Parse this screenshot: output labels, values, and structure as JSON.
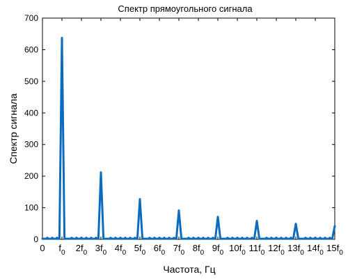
{
  "chart_data": {
    "type": "line",
    "title": "Спектр прямоугольного сигнала",
    "xlabel": "Частота, Гц",
    "ylabel": "Спектр сигнала",
    "ylim": [
      0,
      700
    ],
    "xlim": [
      0,
      15
    ],
    "y_ticks": [
      "0",
      "100",
      "200",
      "300",
      "400",
      "500",
      "600",
      "700"
    ],
    "x_ticks": [
      {
        "value": 0,
        "base": "0",
        "sub": ""
      },
      {
        "value": 1,
        "base": "f",
        "sub": "0"
      },
      {
        "value": 2,
        "base": "2f",
        "sub": "0"
      },
      {
        "value": 3,
        "base": "3f",
        "sub": "0"
      },
      {
        "value": 4,
        "base": "4f",
        "sub": "0"
      },
      {
        "value": 5,
        "base": "5f",
        "sub": "0"
      },
      {
        "value": 6,
        "base": "6f",
        "sub": "0"
      },
      {
        "value": 7,
        "base": "7f",
        "sub": "0"
      },
      {
        "value": 8,
        "base": "8f",
        "sub": "0"
      },
      {
        "value": 9,
        "base": "9f",
        "sub": "0"
      },
      {
        "value": 10,
        "base": "10f",
        "sub": "0"
      },
      {
        "value": 11,
        "base": "11f",
        "sub": "0"
      },
      {
        "value": 12,
        "base": "12f",
        "sub": "0"
      },
      {
        "value": 13,
        "base": "13f",
        "sub": "0"
      },
      {
        "value": 14,
        "base": "14f",
        "sub": "0"
      },
      {
        "value": 15,
        "base": "15f",
        "sub": "0"
      }
    ],
    "harmonics": [
      {
        "x": 1,
        "y": 637
      },
      {
        "x": 3,
        "y": 212
      },
      {
        "x": 5,
        "y": 127
      },
      {
        "x": 7,
        "y": 91
      },
      {
        "x": 9,
        "y": 71
      },
      {
        "x": 11,
        "y": 58
      },
      {
        "x": 13,
        "y": 49
      },
      {
        "x": 15,
        "y": 42
      }
    ],
    "series_color": "#0b6bbf",
    "grid": false
  }
}
